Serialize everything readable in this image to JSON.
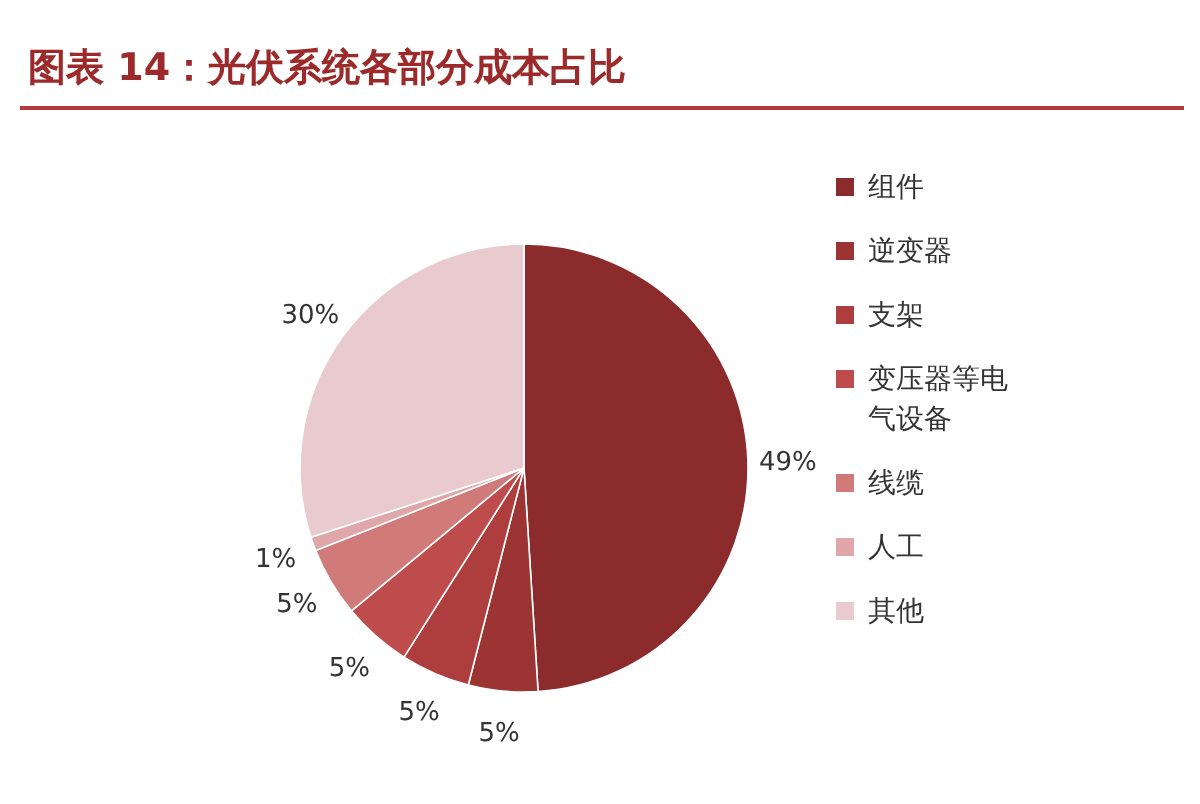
{
  "chart_data": {
    "type": "pie",
    "title": "图表 14：光伏系统各部分成本占比",
    "categories": [
      "组件",
      "逆变器",
      "支架",
      "变压器等电气设备",
      "线缆",
      "人工",
      "其他"
    ],
    "values": [
      49,
      5,
      5,
      5,
      5,
      1,
      30
    ],
    "colors": [
      "#8c2b2b",
      "#9c3434",
      "#ae3d3d",
      "#bf4c4c",
      "#d07a7a",
      "#dfa7a9",
      "#e9cbcf"
    ],
    "value_labels": [
      "49%",
      "5%",
      "5%",
      "5%",
      "5%",
      "1%",
      "30%"
    ],
    "legend": "right"
  }
}
